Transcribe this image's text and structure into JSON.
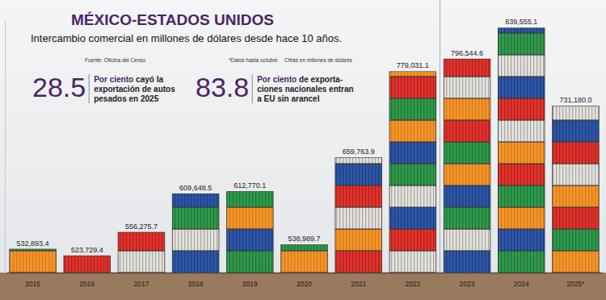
{
  "chart_data": {
    "type": "bar",
    "title": "MÉXICO-ESTADOS UNIDOS",
    "subtitle": "Intercambio comercial en millones de dólares desde hace 10 años.",
    "notes": [
      "Fuente: Oficina del Censo",
      "*Datos hasta octubre",
      "Cifras en millones de dólares"
    ],
    "annotations": [
      {
        "value": 28.5,
        "highlight": "Por ciento",
        "lines": [
          "cayó la",
          "exportación de autos",
          "pesados en 2025"
        ]
      },
      {
        "value": 83.8,
        "highlight": "Por ciento",
        "lines": [
          "de exporta-",
          "ciones nacionales entran",
          "a EU sin arancel"
        ]
      }
    ],
    "categories": [
      "2015",
      "2016",
      "2017",
      "2018",
      "2019",
      "2020",
      "2021",
      "2022",
      "2023",
      "2024",
      "2025*"
    ],
    "values": [
      532893.4,
      523729.4,
      556275.7,
      609648.5,
      612770.1,
      538989.7,
      659763.9,
      779031.1,
      796544.6,
      839555.1,
      731180.0
    ],
    "value_labels": [
      "532,893.4",
      "523,729.4",
      "556,275.7",
      "609,648.5",
      "612,770.1",
      "538,989.7",
      "659,763.9",
      "779,031.1",
      "796,544.6",
      "839,555.1",
      "731,180.0"
    ],
    "ylim": [
      500000,
      850000
    ],
    "data_labels": true,
    "tick_labels": "x",
    "grid": false
  }
}
